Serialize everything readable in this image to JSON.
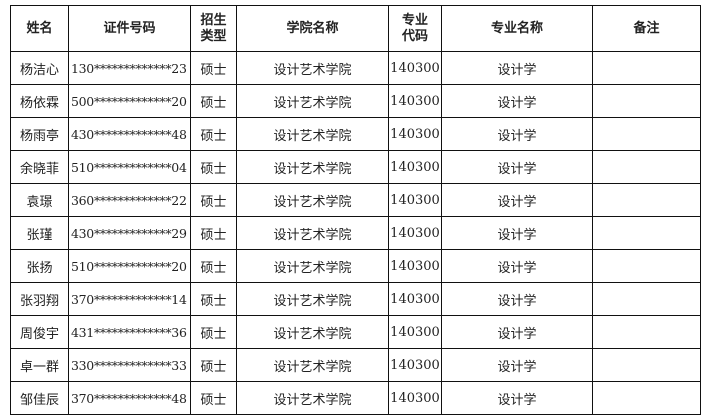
{
  "headers": [
    "姓名",
    "证件号码",
    "招生类型",
    "学院名称",
    "专业代码",
    "专业名称",
    "备注"
  ],
  "rows": [
    [
      "杨洁心",
      "130*************23",
      "硕士",
      "设计艺术学院",
      "140300",
      "设计学",
      ""
    ],
    [
      "杨依霖",
      "500*************20",
      "硕士",
      "设计艺术学院",
      "140300",
      "设计学",
      ""
    ],
    [
      "杨雨亭",
      "430*************48",
      "硕士",
      "设计艺术学院",
      "140300",
      "设计学",
      ""
    ],
    [
      "余晓菲",
      "510*************04",
      "硕士",
      "设计艺术学院",
      "140300",
      "设计学",
      ""
    ],
    [
      "袁璟",
      "360*************22",
      "硕士",
      "设计艺术学院",
      "140300",
      "设计学",
      ""
    ],
    [
      "张瑾",
      "430*************29",
      "硕士",
      "设计艺术学院",
      "140300",
      "设计学",
      ""
    ],
    [
      "张扬",
      "510*************20",
      "硕士",
      "设计艺术学院",
      "140300",
      "设计学",
      ""
    ],
    [
      "张羽翔",
      "370*************14",
      "硕士",
      "设计艺术学院",
      "140300",
      "设计学",
      ""
    ],
    [
      "周俊宇",
      "431*************36",
      "硕士",
      "设计艺术学院",
      "140300",
      "设计学",
      ""
    ],
    [
      "卓一群",
      "330*************33",
      "硕士",
      "设计艺术学院",
      "140300",
      "设计学",
      ""
    ],
    [
      "邹佳辰",
      "370*************48",
      "硕士",
      "设计艺术学院",
      "140300",
      "设计学",
      ""
    ]
  ]
}
